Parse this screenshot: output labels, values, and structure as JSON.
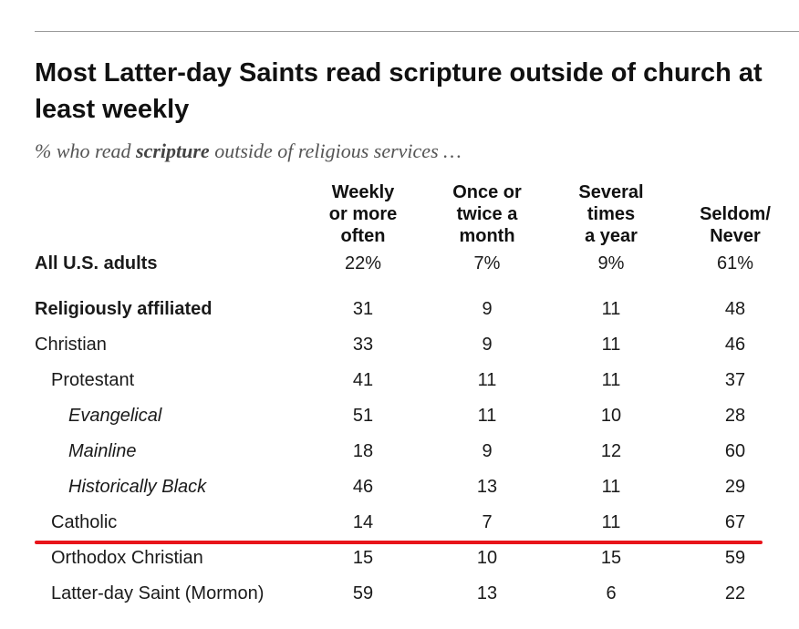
{
  "title": "Most Latter-day Saints read scripture outside of church at least weekly",
  "subtitle": {
    "pre": "% who read ",
    "bold": "scripture",
    "post": " outside of religious services …"
  },
  "chart_data": {
    "type": "table",
    "columns": [
      {
        "line1": "Weekly",
        "line2": "or more",
        "line3": "often"
      },
      {
        "line1": "Once or",
        "line2": "twice a",
        "line3": "month"
      },
      {
        "line1": "Several",
        "line2": "times",
        "line3": "a year"
      },
      {
        "line1": "",
        "line2": "Seldom/",
        "line3": "Never"
      }
    ],
    "rows": [
      {
        "label": "All U.S. adults",
        "style": "bold",
        "indent": 0,
        "values": [
          "22%",
          "7%",
          "9%",
          "61%"
        ]
      },
      {
        "label": "Religiously affiliated",
        "style": "bold",
        "indent": 0,
        "values": [
          "31",
          "9",
          "11",
          "48"
        ]
      },
      {
        "label": "Christian",
        "style": "normal",
        "indent": 0,
        "values": [
          "33",
          "9",
          "11",
          "46"
        ]
      },
      {
        "label": "Protestant",
        "style": "normal",
        "indent": 1,
        "values": [
          "41",
          "11",
          "11",
          "37"
        ]
      },
      {
        "label": "Evangelical",
        "style": "italic",
        "indent": 2,
        "values": [
          "51",
          "11",
          "10",
          "28"
        ]
      },
      {
        "label": "Mainline",
        "style": "italic",
        "indent": 2,
        "values": [
          "18",
          "9",
          "12",
          "60"
        ]
      },
      {
        "label": "Historically Black",
        "style": "italic",
        "indent": 2,
        "values": [
          "46",
          "13",
          "11",
          "29"
        ]
      },
      {
        "label": "Catholic",
        "style": "normal",
        "indent": 1,
        "values": [
          "14",
          "7",
          "11",
          "67"
        ]
      },
      {
        "label": "Orthodox Christian",
        "style": "normal",
        "indent": 1,
        "values": [
          "15",
          "10",
          "15",
          "59"
        ]
      },
      {
        "label": "Latter-day Saint (Mormon)",
        "style": "normal",
        "indent": 1,
        "values": [
          "59",
          "13",
          "6",
          "22"
        ]
      }
    ],
    "highlight": {
      "type": "red-underline",
      "after_row": "Catholic",
      "color": "#e8141b"
    }
  }
}
